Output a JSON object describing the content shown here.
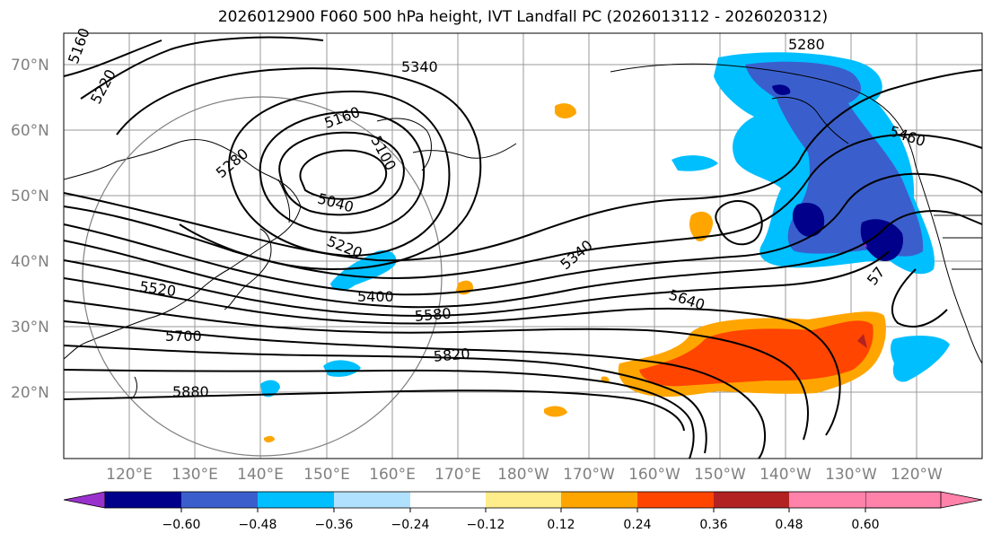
{
  "title": "2026012900 F060 500 hPa height, IVT Landfall PC (2026013112 - 2026020312)",
  "lat_labels": [
    "70°N",
    "60°N",
    "50°N",
    "40°N",
    "30°N",
    "20°N"
  ],
  "lon_labels": [
    "120°E",
    "130°E",
    "140°E",
    "150°E",
    "160°E",
    "170°E",
    "180°W",
    "170°W",
    "160°W",
    "150°W",
    "140°W",
    "130°W",
    "120°W"
  ],
  "contour_labels": {
    "c5160a": "5160",
    "c5220a": "5220",
    "c5340a": "5340",
    "c5280a": "5280",
    "c5160b": "5160",
    "c5100": "5100",
    "c5280b": "5280",
    "c5040": "5040",
    "c5220b": "5220",
    "c5520": "5520",
    "c5400": "5400",
    "c5580": "5580",
    "c5700": "5700",
    "c5820": "5820",
    "c5880": "5880",
    "c5340b": "5340",
    "c5640": "5640",
    "c5460": "5460",
    "c57xx": "57"
  },
  "colorbar": {
    "ticks": [
      "−0.60",
      "−0.48",
      "−0.36",
      "−0.24",
      "−0.12",
      "0.12",
      "0.24",
      "0.36",
      "0.48",
      "0.60"
    ],
    "colors": [
      "#9932cc",
      "#00008b",
      "#3a5fcd",
      "#00bfff",
      "#b0e2ff",
      "#ffffff",
      "#ffec8b",
      "#ffa500",
      "#ff4500",
      "#b22222",
      "#ff82ab"
    ]
  }
}
